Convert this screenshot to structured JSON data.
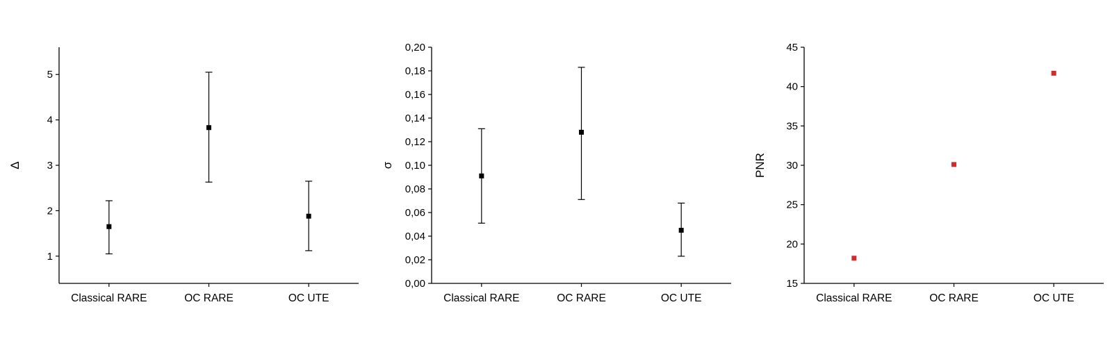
{
  "figure": {
    "background": "#ffffff",
    "axis_color": "#000000",
    "marker_shape": "square"
  },
  "chart_data": [
    {
      "id": "delta",
      "type": "scatter",
      "title": "",
      "xlabel": "",
      "ylabel": "Δ",
      "categories": [
        "Classical RARE",
        "OC RARE",
        "OC UTE"
      ],
      "series": [
        {
          "name": "delta-mean-with-error",
          "color": "#000000",
          "values": [
            1.65,
            3.83,
            1.88
          ],
          "err_min": [
            1.05,
            2.63,
            1.12
          ],
          "err_max": [
            2.22,
            5.05,
            2.65
          ]
        }
      ],
      "ylim": [
        0.4,
        5.6
      ],
      "ytick_values": [
        1,
        2,
        3,
        4,
        5
      ],
      "ytick_labels": [
        "1",
        "2",
        "3",
        "4",
        "5"
      ],
      "grid": false,
      "legend": "none",
      "error_bars": true
    },
    {
      "id": "sigma",
      "type": "scatter",
      "title": "",
      "xlabel": "",
      "ylabel": "σ",
      "categories": [
        "Classical RARE",
        "OC RARE",
        "OC UTE"
      ],
      "series": [
        {
          "name": "sigma-mean-with-error",
          "color": "#000000",
          "values": [
            0.091,
            0.128,
            0.045
          ],
          "err_min": [
            0.051,
            0.071,
            0.023
          ],
          "err_max": [
            0.131,
            0.183,
            0.068
          ]
        }
      ],
      "ylim": [
        0.0,
        0.2
      ],
      "ytick_values": [
        0.0,
        0.02,
        0.04,
        0.06,
        0.08,
        0.1,
        0.12,
        0.14,
        0.16,
        0.18,
        0.2
      ],
      "ytick_labels": [
        "0,00",
        "0,02",
        "0,04",
        "0,06",
        "0,08",
        "0,10",
        "0,12",
        "0,14",
        "0,16",
        "0,18",
        "0,20"
      ],
      "grid": false,
      "legend": "none",
      "error_bars": true
    },
    {
      "id": "pnr",
      "type": "scatter",
      "title": "",
      "xlabel": "",
      "ylabel": "PNR",
      "categories": [
        "Classical RARE",
        "OC RARE",
        "OC UTE"
      ],
      "series": [
        {
          "name": "pnr",
          "color": "#d42a2a",
          "values": [
            18.2,
            30.1,
            41.7
          ]
        }
      ],
      "ylim": [
        15,
        45
      ],
      "ytick_values": [
        15,
        20,
        25,
        30,
        35,
        40,
        45
      ],
      "ytick_labels": [
        "15",
        "20",
        "25",
        "30",
        "35",
        "40",
        "45"
      ],
      "grid": false,
      "legend": "none",
      "error_bars": false
    }
  ]
}
